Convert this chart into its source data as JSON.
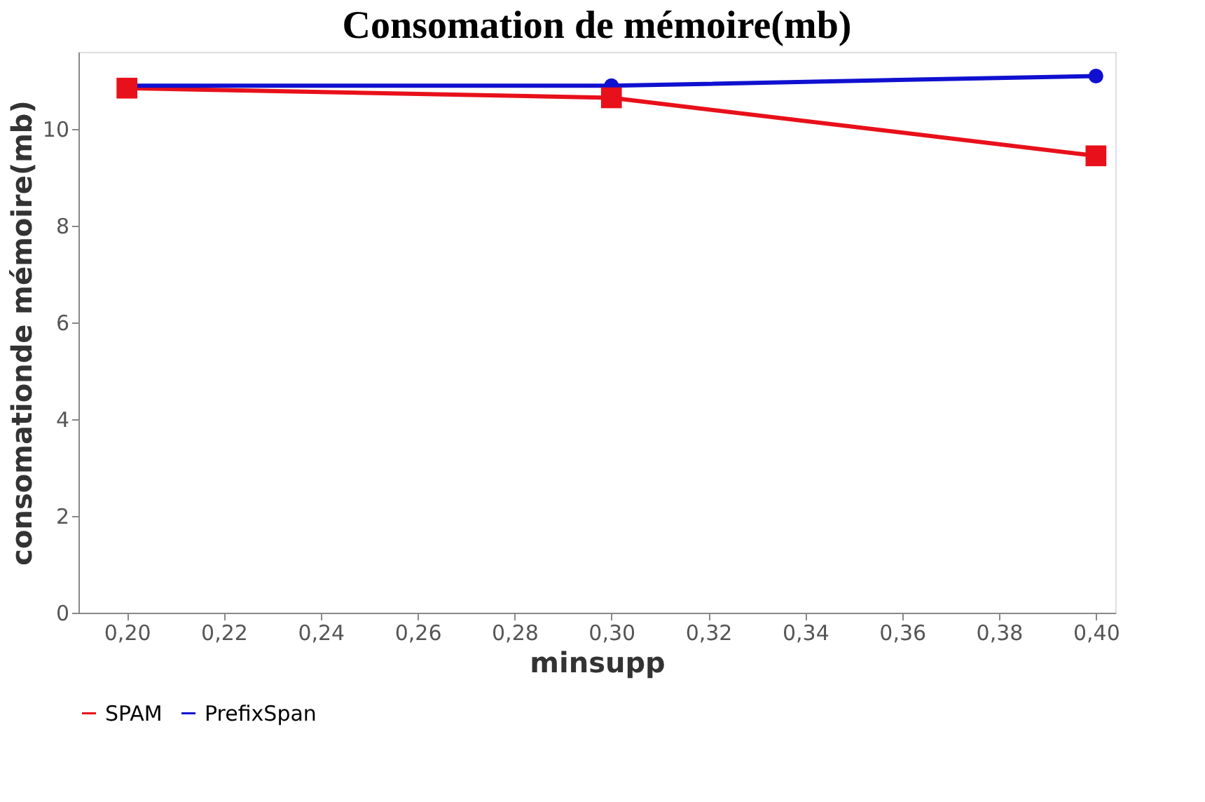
{
  "chart_data": {
    "type": "line",
    "title": "Consomation de mémoire(mb)",
    "xlabel": "minsupp",
    "ylabel": "consomationde mémoire(mb)",
    "x": [
      0.2,
      0.3,
      0.4
    ],
    "series": [
      {
        "name": "SPAM",
        "color": "#e8101a",
        "marker": "square",
        "values": [
          10.85,
          10.65,
          9.45
        ]
      },
      {
        "name": "PrefixSpan",
        "color": "#1010d0",
        "marker": "circle",
        "values": [
          10.9,
          10.9,
          11.1
        ]
      }
    ],
    "xlim": [
      0.19,
      0.404
    ],
    "ylim": [
      0,
      11.6
    ],
    "xticks": [
      {
        "value": 0.2,
        "label": "0,20"
      },
      {
        "value": 0.22,
        "label": "0,22"
      },
      {
        "value": 0.24,
        "label": "0,24"
      },
      {
        "value": 0.26,
        "label": "0,26"
      },
      {
        "value": 0.28,
        "label": "0,28"
      },
      {
        "value": 0.3,
        "label": "0,30"
      },
      {
        "value": 0.32,
        "label": "0,32"
      },
      {
        "value": 0.34,
        "label": "0,34"
      },
      {
        "value": 0.36,
        "label": "0,36"
      },
      {
        "value": 0.38,
        "label": "0,38"
      },
      {
        "value": 0.4,
        "label": "0,40"
      }
    ],
    "yticks": [
      0,
      2,
      4,
      6,
      8,
      10
    ],
    "grid": false,
    "legend": "bottom",
    "line_style": "solid"
  }
}
